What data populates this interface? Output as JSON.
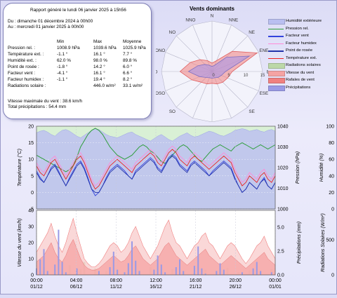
{
  "report": {
    "header": "Rapport généré le lundi 06 janvier 2025 à 15h56",
    "period_from": "Du : dimanche 01 décembre 2024 à 00h00",
    "period_to": "Au : mercredi 01 janvier 2025 à 00h00",
    "col_min": "Min",
    "col_max": "Max",
    "col_avg": "Moyenne",
    "rows": [
      {
        "label": "Pression rel. :",
        "min": "1008.9 hPa",
        "max": "1039.6 hPa",
        "avg": "1025.9 hPa"
      },
      {
        "label": "Température ext. :",
        "min": "-1.1 °",
        "max": "16.1 °",
        "avg": "7.7 °"
      },
      {
        "label": "Humidité ext. :",
        "min": "62.0 %",
        "max": "98.0 %",
        "avg": "89.8 %"
      },
      {
        "label": "Point de rosée :",
        "min": "-1.8 °",
        "max": "14.2 °",
        "avg": "6.0 °"
      },
      {
        "label": "Facteur vent :",
        "min": "-4.1 °",
        "max": "16.1 °",
        "avg": "6.6 °"
      },
      {
        "label": "Facteur humidex :",
        "min": "-1.1 °",
        "max": "19.4 °",
        "avg": "8.2 °"
      },
      {
        "label": "Radiations solaire :",
        "min": "",
        "max": "446.0 w/m²",
        "avg": "33.1 w/m²"
      }
    ],
    "wind_max": "Vitesse maximale du vent : 38.6 km/h",
    "total_rain": "Total précipitations : 54.4 mm"
  },
  "windrose": {
    "title": "Vents dominants",
    "directions": [
      "N",
      "NNE",
      "NE",
      "ENE",
      "E",
      "ESE",
      "SE",
      "SSE",
      "S",
      "SSO",
      "SO",
      "OSO",
      "O",
      "ONO",
      "NO",
      "NNO"
    ],
    "ring_labels": [
      "0",
      "5",
      "10",
      "15"
    ],
    "max": 15,
    "speed": [
      1.5,
      2,
      6,
      12,
      4,
      3,
      2.5,
      2,
      2,
      2,
      2.5,
      4,
      7,
      4.5,
      3,
      2
    ],
    "gust": [
      2.5,
      3.5,
      8.5,
      14.5,
      6,
      5,
      4.5,
      4,
      3.5,
      4,
      4.5,
      6.5,
      9.5,
      7,
      5,
      3.5
    ]
  },
  "legend": [
    {
      "label": "Humidité extérieure",
      "color": "#b9bff0"
    },
    {
      "label": "Pression rel.",
      "color": "#2e9e3c"
    },
    {
      "label": "Facteur vent",
      "color": "#3344dd"
    },
    {
      "label": "Facteur humidex",
      "color": "#ff8ad8"
    },
    {
      "label": "Point de rosée",
      "color": "#2233aa"
    },
    {
      "label": "Température ext.",
      "color": "#ee2222"
    },
    {
      "label": "Radiations solaires",
      "color": "#bcd8a8"
    },
    {
      "label": "Vitesse du vent",
      "color": "#f5a3a3"
    },
    {
      "label": "Rafales de vent",
      "color": "#f08080"
    },
    {
      "label": "Précipitations",
      "color": "#9a9ae6"
    }
  ],
  "chart_data": [
    {
      "type": "line",
      "ylabel": "Température (°C)",
      "ylabel_right1": "Pression (hPa)",
      "ylabel_right2": "Humidité (%)",
      "ylim": [
        -5,
        20
      ],
      "y_ticks": [
        "20",
        "15",
        "10",
        "5",
        "0",
        "-5"
      ],
      "pressure_ticks": [
        "1040",
        "1030",
        "1020",
        "1010",
        "1000"
      ],
      "humidity_ticks": [
        "100",
        "80",
        "60",
        "40",
        "20",
        "0"
      ],
      "x_ticks": [
        {
          "time": "00:00",
          "date": "01/12"
        },
        {
          "time": "04:00",
          "date": "06/12"
        },
        {
          "time": "08:00",
          "date": "11/12"
        },
        {
          "time": "12:00",
          "date": "16/12"
        },
        {
          "time": "16:00",
          "date": "21/12"
        },
        {
          "time": "20:00",
          "date": "26/12"
        },
        {
          "time": "00:00",
          "date": "01/01"
        }
      ],
      "temperature": [
        8,
        6,
        5,
        7,
        9,
        10,
        8,
        6,
        4,
        6,
        8,
        10,
        11,
        9,
        6,
        3,
        1,
        2,
        4,
        6,
        8,
        9,
        10,
        9,
        8,
        7,
        6,
        8,
        9,
        10,
        11,
        12,
        11,
        9,
        8,
        10,
        12,
        13,
        12,
        10,
        9,
        8,
        10,
        11,
        10,
        9,
        8,
        7,
        8,
        9,
        10,
        11,
        10,
        9,
        6,
        4,
        2,
        3,
        5,
        4,
        3,
        5,
        6,
        4,
        3,
        5
      ],
      "pressure": [
        1026,
        1025,
        1024,
        1023,
        1022,
        1021,
        1020,
        1019,
        1018,
        1019,
        1021,
        1025,
        1030,
        1033,
        1036,
        1038,
        1039,
        1038,
        1036,
        1033,
        1030,
        1028,
        1026,
        1025,
        1024,
        1025,
        1026,
        1028,
        1030,
        1031,
        1030,
        1028,
        1027,
        1025,
        1023,
        1022,
        1024,
        1026,
        1028,
        1030,
        1031,
        1030,
        1028,
        1026,
        1024,
        1023,
        1025,
        1027,
        1029,
        1030,
        1031,
        1030,
        1029,
        1028,
        1030,
        1031,
        1032,
        1031,
        1030,
        1029,
        1030,
        1031,
        1030,
        1029,
        1030,
        1031
      ],
      "humidity": [
        92,
        94,
        95,
        93,
        90,
        88,
        92,
        95,
        96,
        94,
        91,
        88,
        86,
        89,
        92,
        95,
        97,
        96,
        93,
        90,
        88,
        87,
        86,
        88,
        90,
        92,
        93,
        90,
        88,
        86,
        84,
        82,
        85,
        88,
        90,
        87,
        84,
        82,
        85,
        88,
        90,
        92,
        89,
        87,
        88,
        90,
        92,
        94,
        93,
        91,
        89,
        88,
        90,
        92,
        95,
        96,
        97,
        96,
        94,
        95,
        96,
        94,
        93,
        95,
        96,
        94
      ],
      "dew_point": [
        6,
        4,
        3,
        5,
        7,
        8,
        6,
        4,
        2,
        4,
        6,
        8,
        9,
        7,
        4,
        1,
        0,
        0,
        2,
        4,
        6,
        7,
        8,
        7,
        6,
        5,
        4,
        6,
        7,
        8,
        9,
        10,
        9,
        7,
        6,
        8,
        10,
        11,
        10,
        8,
        7,
        6,
        8,
        9,
        8,
        7,
        6,
        5,
        6,
        7,
        8,
        9,
        8,
        7,
        4,
        2,
        0,
        1,
        3,
        2,
        1,
        3,
        4,
        2,
        1,
        3
      ],
      "wind_chill": [
        6.5,
        4.5,
        3,
        5,
        7.5,
        8.5,
        6.5,
        4,
        2,
        4.5,
        6.5,
        8.5,
        9.5,
        7.5,
        4.5,
        1,
        -1,
        0,
        2,
        4.5,
        6.5,
        7.5,
        8.5,
        7.5,
        6.5,
        5,
        4,
        6.5,
        7.5,
        8.5,
        9.5,
        10.5,
        9.5,
        7.5,
        6.5,
        8.5,
        10.5,
        11.5,
        10.5,
        8.5,
        7.5,
        6.5,
        8.5,
        9.5,
        8.5,
        7.5,
        6.5,
        5,
        6.5,
        7.5,
        8.5,
        9.5,
        8.5,
        7.5,
        4.5,
        2,
        0,
        1,
        3,
        2,
        1,
        3,
        4.5,
        2,
        1,
        3
      ],
      "humidex": [
        9,
        7,
        6,
        8,
        10,
        11,
        9,
        7,
        5,
        7,
        9,
        11,
        12,
        10,
        7,
        4,
        2,
        3,
        5,
        7,
        9,
        10,
        11,
        10,
        9,
        8,
        7,
        9,
        10,
        11,
        12,
        13,
        12,
        10,
        9,
        11,
        13,
        14,
        13,
        11,
        10,
        9,
        11,
        12,
        11,
        10,
        9,
        8,
        9,
        10,
        11,
        12,
        11,
        10,
        7,
        5,
        3,
        4,
        6,
        5,
        4,
        6,
        7,
        5,
        4,
        6
      ]
    },
    {
      "type": "bar",
      "ylabel": "Vitesse du vent (km/h)",
      "ylabel_right1": "Précipitations (mm)",
      "ylabel_right2": "Radiations Solaires (W/m²)",
      "ylim": [
        0,
        40
      ],
      "y_ticks": [
        "40",
        "30",
        "20",
        "10",
        "0"
      ],
      "rain_ticks": [
        "5.0",
        "2.5",
        "0.0"
      ],
      "radiation_ticks": [
        "500",
        "0"
      ],
      "wind": [
        8,
        10,
        12,
        16,
        20,
        14,
        10,
        8,
        12,
        18,
        22,
        16,
        10,
        6,
        4,
        3,
        3,
        4,
        6,
        8,
        10,
        12,
        10,
        8,
        9,
        12,
        16,
        18,
        14,
        10,
        8,
        6,
        8,
        10,
        14,
        18,
        20,
        16,
        12,
        10,
        8,
        6,
        8,
        10,
        12,
        14,
        16,
        12,
        10,
        8,
        6,
        8,
        10,
        12,
        10,
        8,
        6,
        4,
        6,
        8,
        10,
        12,
        14,
        10,
        8,
        6
      ],
      "gusts": [
        14,
        18,
        22,
        26,
        32,
        24,
        18,
        14,
        20,
        28,
        35,
        26,
        18,
        10,
        7,
        5,
        5,
        7,
        10,
        14,
        18,
        20,
        18,
        14,
        16,
        20,
        26,
        30,
        24,
        18,
        14,
        10,
        14,
        18,
        24,
        30,
        34,
        26,
        20,
        18,
        14,
        10,
        14,
        18,
        20,
        24,
        26,
        20,
        18,
        14,
        10,
        14,
        18,
        20,
        18,
        14,
        10,
        7,
        10,
        14,
        18,
        20,
        24,
        18,
        14,
        10
      ],
      "rain": [
        0.5,
        1.2,
        2.0,
        0.3,
        0.0,
        0.8,
        3.5,
        1.0,
        0.2,
        0.0,
        0.0,
        0.5,
        0.0,
        0.0,
        0.0,
        0.0,
        0.0,
        0.3,
        0.0,
        0.0,
        0.6,
        1.8,
        0.4,
        0.0,
        0.2,
        0.9,
        2.6,
        1.1,
        0.3,
        0.0,
        0.0,
        0.0,
        0.4,
        1.5,
        0.8,
        0.2,
        0.0,
        0.0,
        0.6,
        1.2,
        0.3,
        0.0,
        0.0,
        0.7,
        2.2,
        0.5,
        0.1,
        0.0,
        0.0,
        0.3,
        0.9,
        0.4,
        0.0,
        0.0,
        0.0,
        0.0,
        0.2,
        0.0,
        0.0,
        0.5,
        1.0,
        0.3,
        0.0,
        0.0,
        0.2,
        0.0
      ],
      "radiation": [
        0,
        60,
        120,
        0,
        0,
        80,
        0,
        0,
        40,
        150,
        0,
        0,
        90,
        200,
        0,
        0,
        100,
        0,
        0,
        60,
        0,
        0,
        80,
        0,
        0,
        30,
        0,
        0,
        70,
        0,
        0,
        120,
        0,
        0,
        40,
        0,
        0,
        90,
        0,
        0,
        50,
        0,
        0,
        30,
        0,
        0,
        80,
        0,
        0,
        60,
        0,
        0,
        110,
        0,
        0,
        40,
        0,
        0,
        70,
        0,
        0,
        50,
        0,
        0,
        90,
        0
      ]
    }
  ]
}
